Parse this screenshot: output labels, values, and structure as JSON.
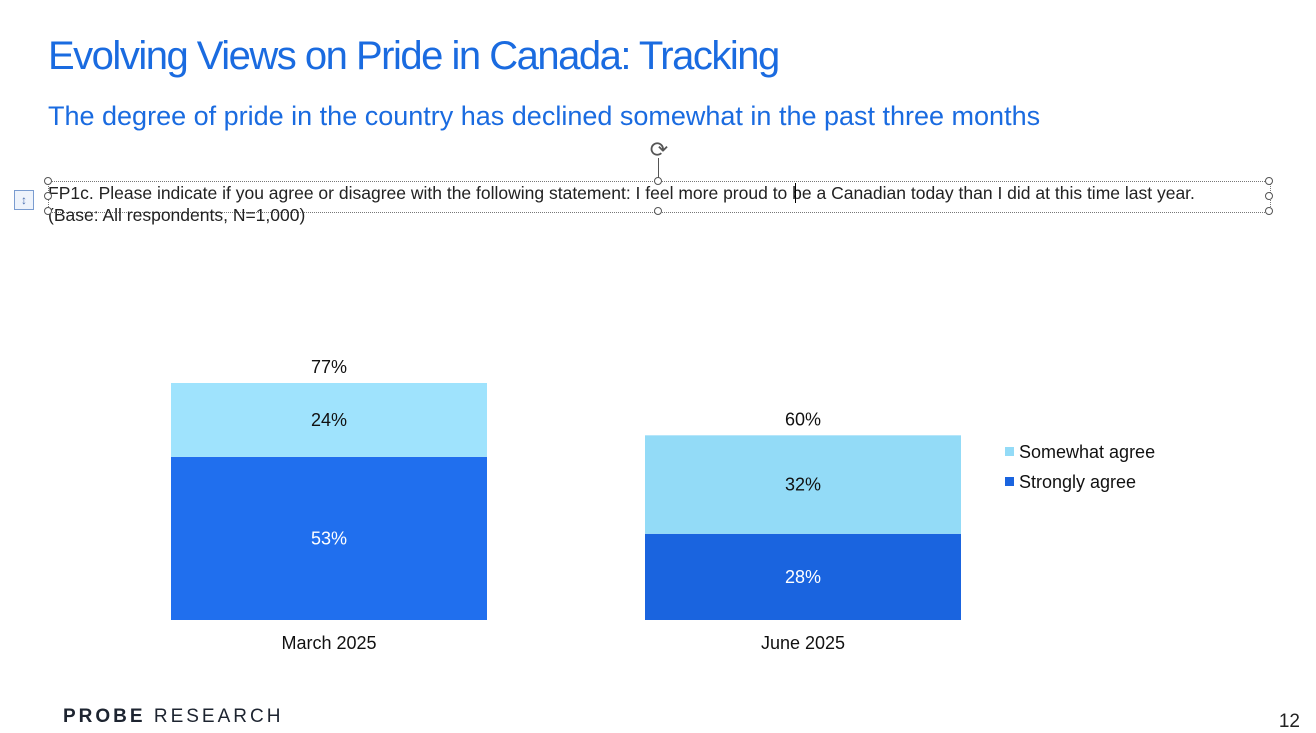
{
  "slide": {
    "title": "Evolving Views on Pride in Canada: Tracking",
    "subtitle": "The degree of pride in the country has declined somewhat in the past three months",
    "note": "FP1c. Please indicate if you agree or disagree with the following statement: I feel more proud to be a Canadian today than I did at this time last year. (Base: All respondents, N=1,000)",
    "logo_bold": "PROBE",
    "logo_light": "RESEARCH",
    "page_number": "12"
  },
  "icons": {
    "rotate": "rotate-handle-icon",
    "layout": "layout-options-icon"
  },
  "chart_data": {
    "type": "bar",
    "stacked": true,
    "categories": [
      "March 2025",
      "June 2025"
    ],
    "series": [
      {
        "name": "Strongly agree",
        "values": [
          53,
          28
        ],
        "labels": [
          "53%",
          "28%"
        ],
        "color": "#206fee",
        "label_color": "#ffffff"
      },
      {
        "name": "Somewhat agree",
        "values": [
          24,
          32
        ],
        "labels": [
          "24%",
          "32%"
        ],
        "color": "#9fe3fd",
        "label_color": "#111111"
      }
    ],
    "totals": [
      77,
      60
    ],
    "total_labels": [
      "77%",
      "60%"
    ],
    "bar_colors_by_category": [
      {
        "Strongly agree": "#206fee",
        "Somewhat agree": "#9fe3fd"
      },
      {
        "Strongly agree": "#1a64df",
        "Somewhat agree": "#93dbf7"
      }
    ],
    "legend": [
      {
        "name": "Somewhat agree",
        "color": "#93dbf7"
      },
      {
        "name": "Strongly agree",
        "color": "#1a64df"
      }
    ],
    "legend_position": "right",
    "ylim": [
      0,
      80
    ],
    "grid": false,
    "xlabel": "",
    "ylabel": ""
  }
}
